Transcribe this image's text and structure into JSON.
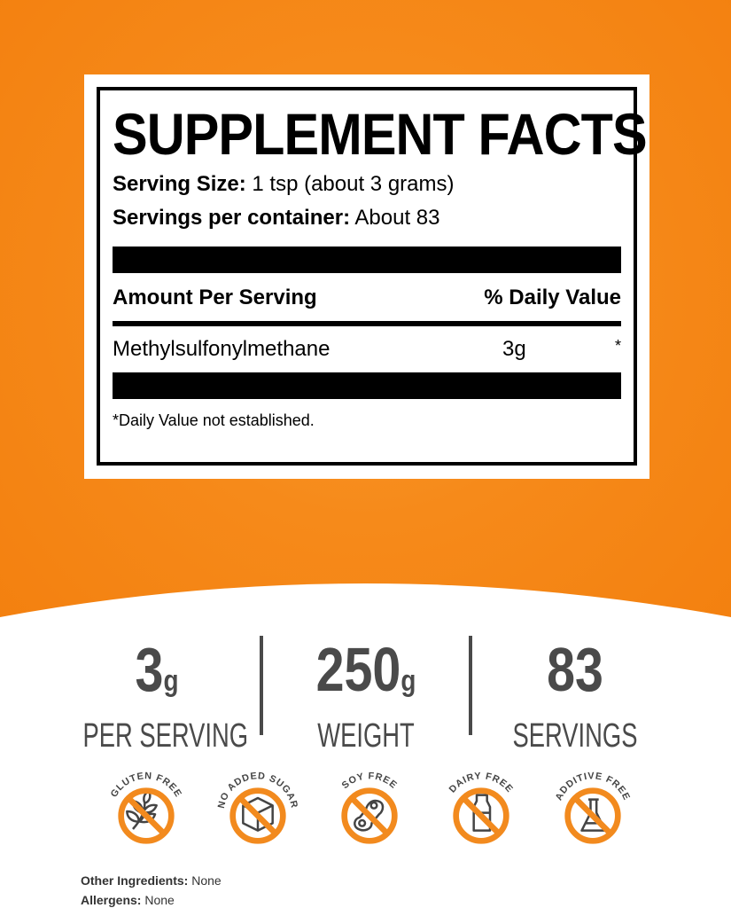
{
  "facts": {
    "title": "SUPPLEMENT FACTS",
    "serving_size_label": "Serving Size:",
    "serving_size_value": "1 tsp (about 3 grams)",
    "servings_label": "Servings per container:",
    "servings_value": "About 83",
    "amount_header": "Amount Per Serving",
    "dv_header": "% Daily Value",
    "ingredient": "Methylsulfonylmethane",
    "ingredient_amount": "3g",
    "ingredient_dv": "*",
    "footnote": "*Daily Value not established."
  },
  "stats": [
    {
      "value": "3",
      "unit": "g",
      "label": "PER SERVING"
    },
    {
      "value": "250",
      "unit": "g",
      "label": "WEIGHT"
    },
    {
      "value": "83",
      "unit": "",
      "label": "SERVINGS"
    }
  ],
  "badges": [
    {
      "label": "GLUTEN FREE",
      "icon": "wheat-icon"
    },
    {
      "label": "NO ADDED SUGAR",
      "icon": "sugar-cube-icon"
    },
    {
      "label": "SOY FREE",
      "icon": "soybean-icon"
    },
    {
      "label": "DAIRY FREE",
      "icon": "milk-bottle-icon"
    },
    {
      "label": "ADDITIVE FREE",
      "icon": "flask-icon"
    }
  ],
  "other_ingredients_label": "Other Ingredients:",
  "other_ingredients_value": "None",
  "allergens_label": "Allergens:",
  "allergens_value": "None",
  "colors": {
    "orange": "#f68a1a",
    "dark_gray": "#4a4a4a"
  }
}
